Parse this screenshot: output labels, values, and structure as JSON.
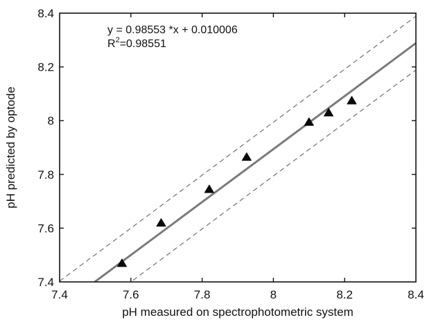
{
  "chart_data": {
    "type": "scatter",
    "xlabel": "pH measured on spectrophotometric system",
    "ylabel": "pH predicted by optode",
    "xlim": [
      7.4,
      8.4
    ],
    "ylim": [
      7.4,
      8.4
    ],
    "xticks": [
      "7.4",
      "7.6",
      "7.8",
      "8",
      "8.2",
      "8.4"
    ],
    "yticks": [
      "7.4",
      "7.6",
      "7.8",
      "8",
      "8.2",
      "8.4"
    ],
    "grid": false,
    "marker": "triangle",
    "points": [
      {
        "x": 7.575,
        "y": 7.47
      },
      {
        "x": 7.685,
        "y": 7.62
      },
      {
        "x": 7.82,
        "y": 7.745
      },
      {
        "x": 7.925,
        "y": 7.865
      },
      {
        "x": 8.1,
        "y": 7.995
      },
      {
        "x": 8.155,
        "y": 8.03
      },
      {
        "x": 8.22,
        "y": 8.075
      }
    ],
    "fit": {
      "slope": 0.98553,
      "intercept": 0.010006,
      "color": "#7a7a7a"
    },
    "bounds_offset": 0.1,
    "bounds_color": "#7a7a7a",
    "equation_text": "y = 0.98553 *x + 0.010006",
    "r2_prefix": "R",
    "r2_superscript": "2",
    "r2_value": "=0.98551"
  }
}
